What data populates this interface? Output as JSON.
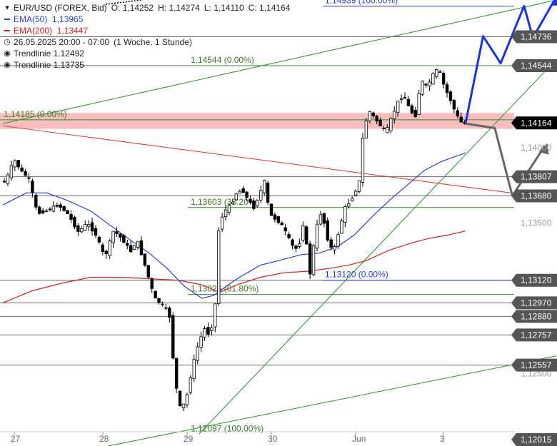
{
  "legend": {
    "symbol": "EUR/USD (FOREX, Bid)",
    "o_label": "O:",
    "o": "1,14252",
    "h_label": "H:",
    "h": "1,14274",
    "l_label": "L:",
    "l": "1,14110",
    "c_label": "C:",
    "c": "1,14164",
    "ema50_label": "EMA(50)",
    "ema50": "1,13965",
    "ema200_label": "EMA(200)",
    "ema200": "1,13447",
    "time_range": "26.05.2025 20:00 - 07:00",
    "timeframe": "(1 Woche, 1 Stunde)",
    "trend1_label": "Trendlinie",
    "trend1": "1.12492",
    "trend2_label": "Trendlinie",
    "trend2": "1.13735"
  },
  "colors": {
    "ema50": "#2a3fd6",
    "ema200": "#d42020",
    "trend": "#2f8f2f",
    "fib_text": "#3a7a2a",
    "zone": "#f7b3b3",
    "resistance": "#e03030",
    "arrow_up": "#1a33e0",
    "arrow_down": "#666666",
    "current_box": "#000000",
    "level_box": "#555555"
  },
  "chart_data": {
    "type": "candlestick",
    "symbol": "EUR/USD",
    "ylim": [
      1.1202,
      1.1498
    ],
    "x_ticks": [
      "27",
      "28",
      "29",
      "30",
      "Jun",
      "3"
    ],
    "price_ticks": [
      "1,14000",
      "1,13500",
      "1,12500"
    ],
    "level_labels": [
      "1,14736",
      "1,14544",
      "1,14164",
      "1,13807",
      "1,13680",
      "1,13120",
      "1,12970",
      "1,12880",
      "1,12757",
      "1,12557",
      "1,12015"
    ],
    "fib_levels": [
      {
        "label": "1,14939 (100.00%)",
        "value": 1.14939
      },
      {
        "label": "1,14544 (0.00%)",
        "value": 1.14544
      },
      {
        "label": "1,14185 (0.00%)",
        "value": 1.14185
      },
      {
        "label": "1,13603 (38.20%)",
        "value": 1.13603
      },
      {
        "label": "1,13120 (0.00%)",
        "value": 1.1312
      },
      {
        "label": "1,13026 (61.80%)",
        "value": 1.13026
      },
      {
        "label": "1,12097 (100.00%)",
        "value": 1.12097
      }
    ],
    "resistance_zone": [
      1.14125,
      1.1423
    ],
    "ema50_last": 1.13965,
    "ema200_last": 1.13447,
    "ohlc_last": {
      "open": 1.14252,
      "high": 1.14274,
      "low": 1.1411,
      "close": 1.14164
    },
    "price_path": [
      {
        "t": 0,
        "v": 1.1378
      },
      {
        "t": 2,
        "v": 1.1377
      },
      {
        "t": 5,
        "v": 1.1392
      },
      {
        "t": 8,
        "v": 1.1383
      },
      {
        "t": 10,
        "v": 1.138
      },
      {
        "t": 13,
        "v": 1.1356
      },
      {
        "t": 17,
        "v": 1.1359
      },
      {
        "t": 20,
        "v": 1.1362
      },
      {
        "t": 23,
        "v": 1.1357
      },
      {
        "t": 27,
        "v": 1.1344
      },
      {
        "t": 30,
        "v": 1.135
      },
      {
        "t": 33,
        "v": 1.1342
      },
      {
        "t": 36,
        "v": 1.1327
      },
      {
        "t": 39,
        "v": 1.1345
      },
      {
        "t": 42,
        "v": 1.1339
      },
      {
        "t": 45,
        "v": 1.1331
      },
      {
        "t": 47,
        "v": 1.1339
      },
      {
        "t": 50,
        "v": 1.132
      },
      {
        "t": 53,
        "v": 1.13
      },
      {
        "t": 56,
        "v": 1.1295
      },
      {
        "t": 58,
        "v": 1.129
      },
      {
        "t": 60,
        "v": 1.1245
      },
      {
        "t": 62,
        "v": 1.1225
      },
      {
        "t": 64,
        "v": 1.1235
      },
      {
        "t": 66,
        "v": 1.1255
      },
      {
        "t": 68,
        "v": 1.127
      },
      {
        "t": 70,
        "v": 1.128
      },
      {
        "t": 72,
        "v": 1.1275
      },
      {
        "t": 74,
        "v": 1.13
      },
      {
        "t": 75,
        "v": 1.135
      },
      {
        "t": 77,
        "v": 1.1358
      },
      {
        "t": 79,
        "v": 1.1362
      },
      {
        "t": 81,
        "v": 1.137
      },
      {
        "t": 83,
        "v": 1.1372
      },
      {
        "t": 85,
        "v": 1.1365
      },
      {
        "t": 87,
        "v": 1.136
      },
      {
        "t": 89,
        "v": 1.137
      },
      {
        "t": 91,
        "v": 1.138
      },
      {
        "t": 92,
        "v": 1.1356
      },
      {
        "t": 94,
        "v": 1.1353
      },
      {
        "t": 96,
        "v": 1.135
      },
      {
        "t": 98,
        "v": 1.1343
      },
      {
        "t": 100,
        "v": 1.1335
      },
      {
        "t": 102,
        "v": 1.1332
      },
      {
        "t": 104,
        "v": 1.1352
      },
      {
        "t": 106,
        "v": 1.1315
      },
      {
        "t": 108,
        "v": 1.1345
      },
      {
        "t": 110,
        "v": 1.1358
      },
      {
        "t": 112,
        "v": 1.134
      },
      {
        "t": 114,
        "v": 1.133
      },
      {
        "t": 116,
        "v": 1.1345
      },
      {
        "t": 118,
        "v": 1.136
      },
      {
        "t": 120,
        "v": 1.1365
      },
      {
        "t": 122,
        "v": 1.1373
      },
      {
        "t": 123,
        "v": 1.1378
      },
      {
        "t": 124,
        "v": 1.1405
      },
      {
        "t": 126,
        "v": 1.1425
      },
      {
        "t": 128,
        "v": 1.142
      },
      {
        "t": 130,
        "v": 1.1415
      },
      {
        "t": 132,
        "v": 1.141
      },
      {
        "t": 134,
        "v": 1.142
      },
      {
        "t": 136,
        "v": 1.143
      },
      {
        "t": 138,
        "v": 1.1435
      },
      {
        "t": 140,
        "v": 1.1426
      },
      {
        "t": 142,
        "v": 1.142
      },
      {
        "t": 144,
        "v": 1.1445
      },
      {
        "t": 146,
        "v": 1.144
      },
      {
        "t": 148,
        "v": 1.1448
      },
      {
        "t": 150,
        "v": 1.1453
      },
      {
        "t": 152,
        "v": 1.144
      },
      {
        "t": 154,
        "v": 1.1432
      },
      {
        "t": 156,
        "v": 1.1422
      },
      {
        "t": 158,
        "v": 1.1416
      }
    ],
    "ema50_path": [
      {
        "t": 0,
        "v": 1.1362
      },
      {
        "t": 8,
        "v": 1.137
      },
      {
        "t": 15,
        "v": 1.137
      },
      {
        "t": 22,
        "v": 1.1365
      },
      {
        "t": 30,
        "v": 1.1358
      },
      {
        "t": 37,
        "v": 1.1348
      },
      {
        "t": 44,
        "v": 1.1338
      },
      {
        "t": 50,
        "v": 1.133
      },
      {
        "t": 56,
        "v": 1.132
      },
      {
        "t": 62,
        "v": 1.1308
      },
      {
        "t": 68,
        "v": 1.13
      },
      {
        "t": 72,
        "v": 1.1302
      },
      {
        "t": 80,
        "v": 1.1313
      },
      {
        "t": 88,
        "v": 1.1322
      },
      {
        "t": 96,
        "v": 1.1326
      },
      {
        "t": 102,
        "v": 1.1329
      },
      {
        "t": 108,
        "v": 1.133
      },
      {
        "t": 114,
        "v": 1.1334
      },
      {
        "t": 120,
        "v": 1.1342
      },
      {
        "t": 126,
        "v": 1.1354
      },
      {
        "t": 132,
        "v": 1.1365
      },
      {
        "t": 138,
        "v": 1.1375
      },
      {
        "t": 144,
        "v": 1.1385
      },
      {
        "t": 150,
        "v": 1.1391
      },
      {
        "t": 158,
        "v": 1.13965
      }
    ],
    "ema200_path": [
      {
        "t": 0,
        "v": 1.1297
      },
      {
        "t": 10,
        "v": 1.1305
      },
      {
        "t": 20,
        "v": 1.131
      },
      {
        "t": 30,
        "v": 1.1314
      },
      {
        "t": 40,
        "v": 1.1314
      },
      {
        "t": 50,
        "v": 1.1313
      },
      {
        "t": 60,
        "v": 1.1312
      },
      {
        "t": 68,
        "v": 1.1309
      },
      {
        "t": 74,
        "v": 1.1304
      },
      {
        "t": 80,
        "v": 1.1309
      },
      {
        "t": 88,
        "v": 1.1314
      },
      {
        "t": 96,
        "v": 1.1317
      },
      {
        "t": 104,
        "v": 1.1318
      },
      {
        "t": 112,
        "v": 1.132
      },
      {
        "t": 118,
        "v": 1.1322
      },
      {
        "t": 124,
        "v": 1.1325
      },
      {
        "t": 132,
        "v": 1.1332
      },
      {
        "t": 140,
        "v": 1.1337
      },
      {
        "t": 146,
        "v": 1.134
      },
      {
        "t": 152,
        "v": 1.1342
      },
      {
        "t": 158,
        "v": 1.13447
      }
    ],
    "scenario_up": [
      {
        "t": 158,
        "v": 1.1416
      },
      {
        "t": 164,
        "v": 1.1474
      },
      {
        "t": 170,
        "v": 1.1456
      },
      {
        "t": 178,
        "v": 1.1494
      },
      {
        "t": 181,
        "v": 1.1473
      },
      {
        "t": 189,
        "v": 1.15
      }
    ],
    "scenario_down": [
      {
        "t": 158,
        "v": 1.1416
      },
      {
        "t": 168,
        "v": 1.1413
      },
      {
        "t": 174,
        "v": 1.1368
      },
      {
        "t": 185,
        "v": 1.1401
      }
    ],
    "trendlines": [
      {
        "name": "Trendlinie 1.12492",
        "from": {
          "t": 0,
          "v": 1.1416
        },
        "to": {
          "t": 189,
          "v": 1.1498
        }
      },
      {
        "name": "Trendlinie 1.13735",
        "from": {
          "t": 67,
          "v": 1.121
        },
        "to": {
          "t": 189,
          "v": 1.14585
        }
      },
      {
        "name": "lower trendline",
        "from": {
          "t": 36,
          "v": 1.1202
        },
        "to": {
          "t": 189,
          "v": 1.12618
        }
      },
      {
        "name": "resistance",
        "from": {
          "t": 0,
          "v": 1.14145
        },
        "to": {
          "t": 189,
          "v": 1.1366
        }
      }
    ]
  }
}
